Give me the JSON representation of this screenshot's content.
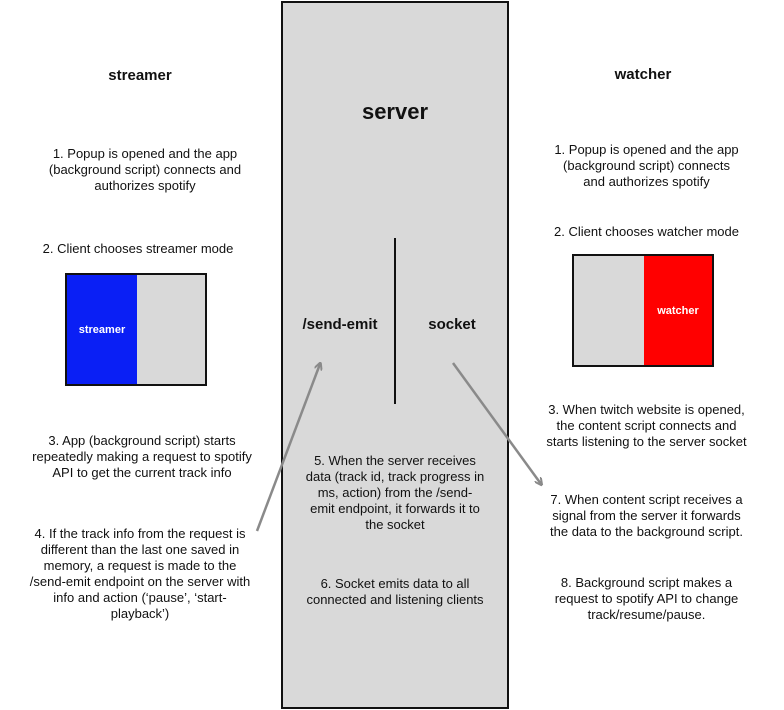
{
  "streamer": {
    "title": "streamer",
    "step1": "1. Popup is opened and the app\n(background script) connects and\nauthorizes spotify",
    "step2": "2. Client chooses streamer mode",
    "mode_label": "streamer",
    "mode_color": "#0a1ff5",
    "step3": "3. App (background script) starts\nrepeatedly making a request to spotify\nAPI to get the current track info",
    "step4": "4. If the track info from the request is\ndifferent than the last one saved in\nmemory, a request is made to the\n/send-emit endpoint on the server with\ninfo and action (‘pause’, ‘start-\nplayback’)"
  },
  "server": {
    "title": "server",
    "endpoint_label": "/send-emit",
    "socket_label": "socket",
    "step5": "5. When the server receives\ndata (track id, track progress in\nms, action) from the /send-\nemit endpoint, it forwards it to\nthe socket",
    "step6": "6. Socket emits data to all\nconnected and listening clients"
  },
  "watcher": {
    "title": "watcher",
    "step1": "1. Popup is opened and the app\n(background script) connects\nand authorizes spotify",
    "step2": "2. Client chooses watcher mode",
    "mode_label": "watcher",
    "mode_color": "#ff0000",
    "step3": "3. When twitch website is opened,\nthe content script connects and\nstarts listening to the server socket",
    "step7": "7. When content script receives a\nsignal from the server it forwards\nthe data to the background script.",
    "step8": "8. Background script makes a\nrequest to spotify API to change\ntrack/resume/pause."
  },
  "colors": {
    "server_fill": "#d9d9d9",
    "arrow": "#8a8a8a",
    "border": "#111111"
  }
}
